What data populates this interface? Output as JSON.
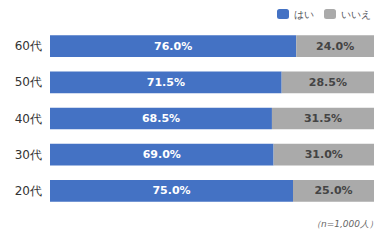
{
  "chart_data": {
    "type": "bar",
    "orientation": "horizontal",
    "stacked": true,
    "categories": [
      "20代",
      "30代",
      "40代",
      "50代",
      "60代"
    ],
    "series": [
      {
        "name": "はい",
        "color": "#4472C4",
        "values": [
          75.0,
          69.0,
          68.5,
          71.5,
          76.0
        ],
        "value_labels": [
          "75.0%",
          "69.0%",
          "68.5%",
          "71.5%",
          "76.0%"
        ]
      },
      {
        "name": "いいえ",
        "color": "#AAAAAA",
        "values": [
          25.0,
          31.0,
          31.5,
          28.5,
          24.0
        ],
        "value_labels": [
          "25.0%",
          "31.0%",
          "31.5%",
          "28.5%",
          "24.0%"
        ]
      }
    ],
    "xlim": [
      0,
      100
    ],
    "data_labels": true,
    "tick_labels": "y",
    "grid": false,
    "legend": "upper right",
    "annotations": [
      "（n=1,000人）"
    ]
  }
}
